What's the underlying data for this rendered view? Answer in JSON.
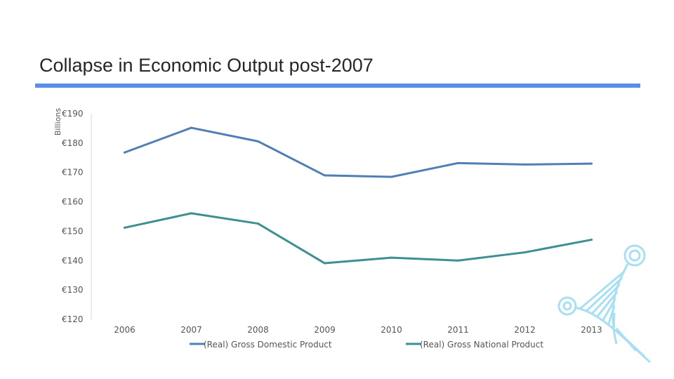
{
  "slide": {
    "title": "Collapse in Economic Output post-2007",
    "accent_color": "#5b8ee6"
  },
  "chart_data": {
    "type": "line",
    "title": "",
    "xlabel": "",
    "ylabel": "Billions",
    "categories": [
      "2006",
      "2007",
      "2008",
      "2009",
      "2010",
      "2011",
      "2012",
      "2013"
    ],
    "ylim": [
      120,
      190
    ],
    "yticks": [
      120,
      130,
      140,
      150,
      160,
      170,
      180,
      190
    ],
    "ytick_labels": [
      "€120",
      "€130",
      "€140",
      "€150",
      "€160",
      "€170",
      "€180",
      "€190"
    ],
    "grid": false,
    "legend_position": "bottom",
    "series": [
      {
        "name": "(Real) Gross Domestic Product",
        "color": "#4f7fb5",
        "values": [
          176.8,
          185.2,
          180.6,
          169.0,
          168.5,
          173.2,
          172.7,
          173.0
        ]
      },
      {
        "name": "(Real) Gross National Product",
        "color": "#3e8f92",
        "values": [
          151.2,
          156.1,
          152.6,
          139.1,
          141.0,
          140.0,
          142.8,
          147.1
        ]
      }
    ]
  }
}
